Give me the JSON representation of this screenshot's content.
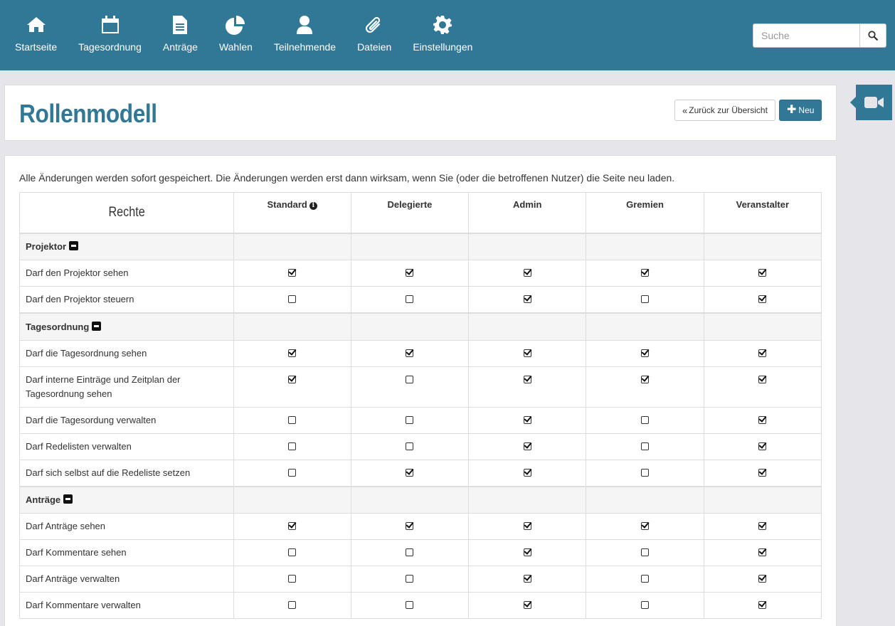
{
  "nav": {
    "items": [
      {
        "label": "Startseite",
        "icon": "home-icon"
      },
      {
        "label": "Tagesordnung",
        "icon": "calendar-icon"
      },
      {
        "label": "Anträge",
        "icon": "document-icon"
      },
      {
        "label": "Wahlen",
        "icon": "pie-chart-icon"
      },
      {
        "label": "Teilnehmende",
        "icon": "user-icon"
      },
      {
        "label": "Dateien",
        "icon": "paperclip-icon"
      },
      {
        "label": "Einstellungen",
        "icon": "gear-icon"
      }
    ],
    "search_placeholder": "Suche"
  },
  "header": {
    "title": "Rollenmodell",
    "back_label": "Zurück zur Übersicht",
    "new_label": "Neu"
  },
  "content": {
    "info_text": "Alle Änderungen werden sofort gespeichert. Die Änderungen werden erst dann wirksam, wenn Sie (oder die betroffenen Nutzer) die Seite neu laden."
  },
  "table": {
    "rights_header": "Rechte",
    "columns": [
      "Standard",
      "Delegierte",
      "Admin",
      "Gremien",
      "Veranstalter"
    ],
    "groups": [
      {
        "name": "Projektor",
        "rows": [
          {
            "label": "Darf den Projektor sehen",
            "values": [
              true,
              true,
              true,
              true,
              true
            ]
          },
          {
            "label": "Darf den Projektor steuern",
            "values": [
              false,
              false,
              true,
              false,
              true
            ]
          }
        ]
      },
      {
        "name": "Tagesordnung",
        "rows": [
          {
            "label": "Darf die Tagesordnung sehen",
            "values": [
              true,
              true,
              true,
              true,
              true
            ]
          },
          {
            "label": "Darf interne Einträge und Zeitplan der Tagesordnung sehen",
            "values": [
              true,
              false,
              true,
              true,
              true
            ]
          },
          {
            "label": "Darf die Tagesordung verwalten",
            "values": [
              false,
              false,
              true,
              false,
              true
            ]
          },
          {
            "label": "Darf Redelisten verwalten",
            "values": [
              false,
              false,
              true,
              false,
              true
            ]
          },
          {
            "label": "Darf sich selbst auf die Redeliste setzen",
            "values": [
              false,
              true,
              true,
              false,
              true
            ]
          }
        ]
      },
      {
        "name": "Anträge",
        "rows": [
          {
            "label": "Darf Anträge sehen",
            "values": [
              true,
              true,
              true,
              true,
              true
            ]
          },
          {
            "label": "Darf Kommentare sehen",
            "values": [
              false,
              false,
              true,
              false,
              true
            ]
          },
          {
            "label": "Darf Anträge verwalten",
            "values": [
              false,
              false,
              true,
              false,
              true
            ]
          },
          {
            "label": "Darf Kommentare verwalten",
            "values": [
              false,
              false,
              true,
              false,
              true
            ]
          }
        ]
      }
    ]
  }
}
